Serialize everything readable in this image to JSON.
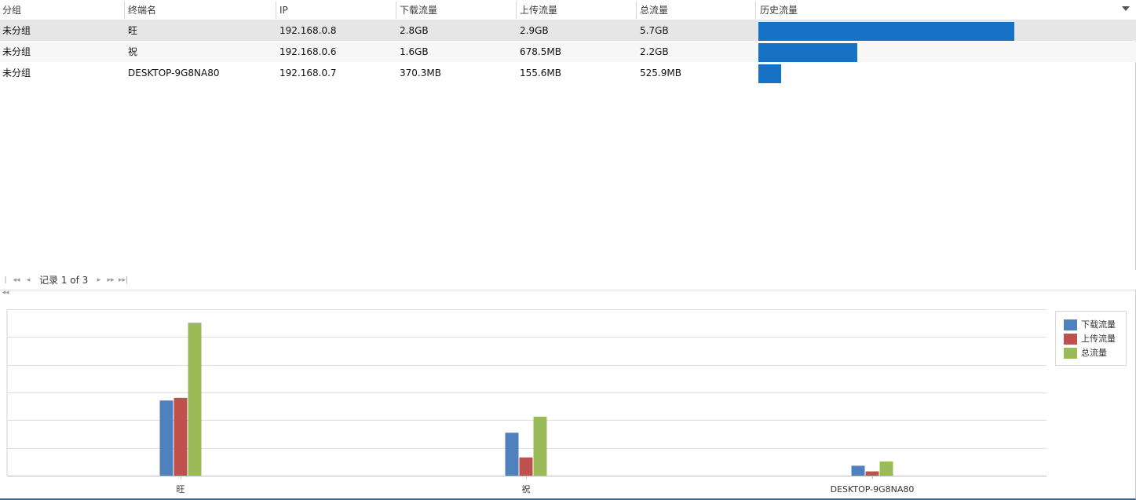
{
  "grid": {
    "columns": [
      "分组",
      "终端名",
      "IP",
      "下载流量",
      "上传流量",
      "总流量",
      "历史流量"
    ],
    "rows": [
      {
        "group": "未分组",
        "name": "旺",
        "ip": "192.168.0.8",
        "download": "2.8GB",
        "upload": "2.9GB",
        "total": "5.7GB",
        "history_fraction": 1.0
      },
      {
        "group": "未分组",
        "name": "祝",
        "ip": "192.168.0.6",
        "download": "1.6GB",
        "upload": "678.5MB",
        "total": "2.2GB",
        "history_fraction": 0.385
      },
      {
        "group": "未分组",
        "name": "DESKTOP-9G8NA80",
        "ip": "192.168.0.7",
        "download": "370.3MB",
        "upload": "155.6MB",
        "total": "525.9MB",
        "history_fraction": 0.09
      }
    ],
    "history_bar_color": "#1772c6"
  },
  "pager": {
    "text": "记录 1 of 3",
    "icons": [
      "first-page-icon",
      "prev-group-icon",
      "prev-page-icon",
      "next-page-icon",
      "next-group-icon",
      "last-page-icon"
    ]
  },
  "chart_data": {
    "type": "bar",
    "categories": [
      "旺",
      "祝",
      "DESKTOP-9G8NA80"
    ],
    "series": [
      {
        "name": "下载流量",
        "color": "#4f81bd",
        "values": [
          2.8,
          1.6,
          0.37
        ]
      },
      {
        "name": "上传流量",
        "color": "#c0504d",
        "values": [
          2.9,
          0.68,
          0.16
        ]
      },
      {
        "name": "总流量",
        "color": "#9bbb59",
        "values": [
          5.7,
          2.2,
          0.53
        ]
      }
    ],
    "title": "",
    "xlabel": "",
    "ylabel": "",
    "ylim": [
      0,
      6.2
    ],
    "grid": true,
    "legend_position": "right"
  }
}
